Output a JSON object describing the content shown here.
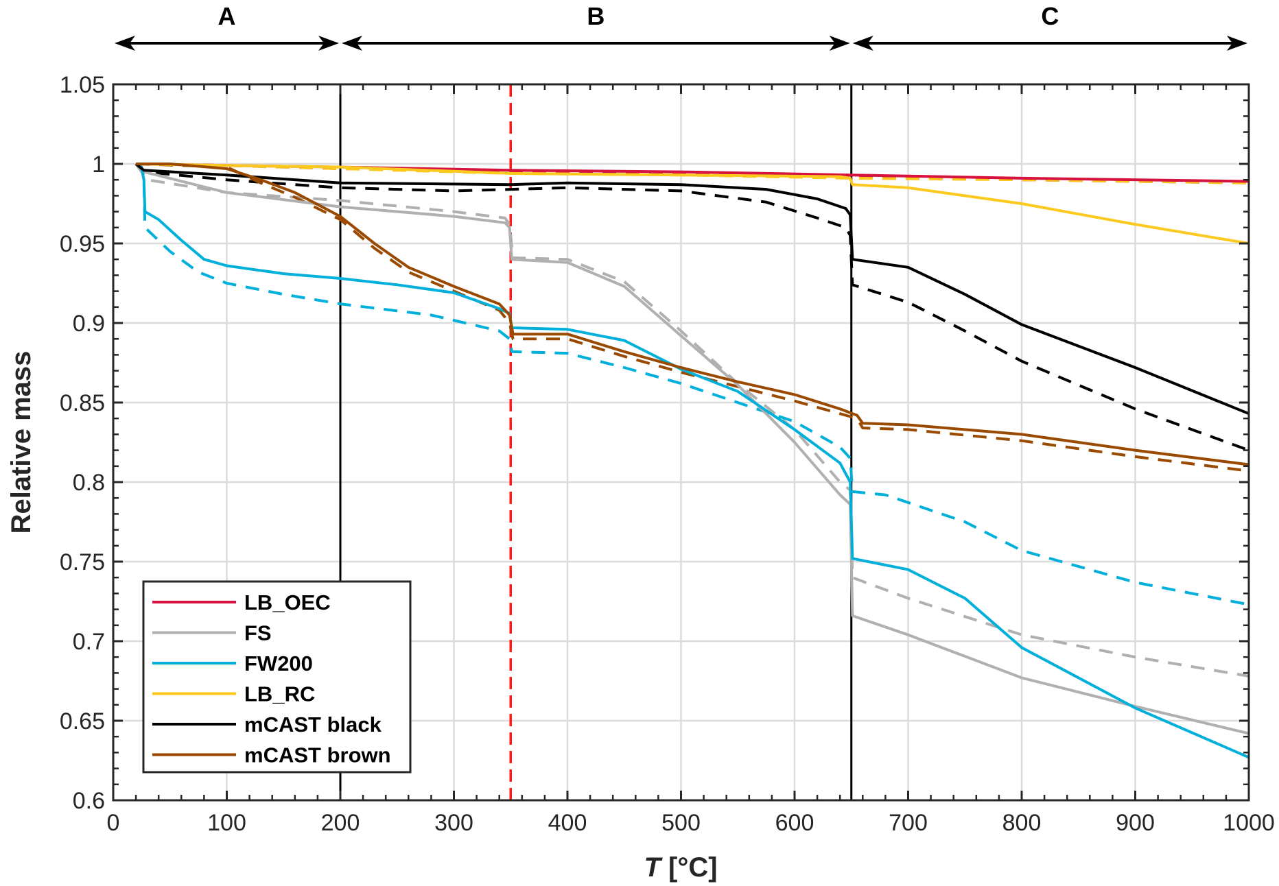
{
  "chart_data": {
    "type": "line",
    "title": "",
    "xlabel_italic": "T",
    "xlabel_rest": " [°C]",
    "ylabel": "Relative mass",
    "xlim": [
      0,
      1000
    ],
    "ylim": [
      0.6,
      1.05
    ],
    "xticks": [
      "0",
      "100",
      "200",
      "300",
      "400",
      "500",
      "600",
      "700",
      "800",
      "900",
      "1000"
    ],
    "xtick_values": [
      0,
      100,
      200,
      300,
      400,
      500,
      600,
      700,
      800,
      900,
      1000
    ],
    "yticks": [
      "0.6",
      "0.65",
      "0.7",
      "0.75",
      "0.8",
      "0.85",
      "0.9",
      "0.95",
      "1",
      "1.05"
    ],
    "ytick_values": [
      0.6,
      0.65,
      0.7,
      0.75,
      0.8,
      0.85,
      0.9,
      0.95,
      1.0,
      1.05
    ],
    "grid": true,
    "legend_position": "bottom-left",
    "regions": [
      {
        "label": "A",
        "from": 0,
        "to": 200
      },
      {
        "label": "B",
        "from": 200,
        "to": 650
      },
      {
        "label": "C",
        "from": 650,
        "to": 1000
      }
    ],
    "vlines": [
      {
        "x": 200,
        "color": "#000000",
        "style": "solid"
      },
      {
        "x": 350,
        "color": "#ff1a1a",
        "style": "dashed"
      },
      {
        "x": 650,
        "color": "#000000",
        "style": "solid"
      }
    ],
    "series": [
      {
        "name": "LB_OEC",
        "color": "#d6123f",
        "style": "dashed",
        "legend": false,
        "points": [
          [
            20,
            1.0
          ],
          [
            100,
            0.999
          ],
          [
            200,
            0.997
          ],
          [
            350,
            0.995
          ],
          [
            500,
            0.994
          ],
          [
            650,
            0.992
          ],
          [
            800,
            0.99
          ],
          [
            1000,
            0.988
          ]
        ]
      },
      {
        "name": "LB_RC",
        "color": "#fcc91e",
        "style": "dashed",
        "legend": false,
        "points": [
          [
            20,
            1.0
          ],
          [
            100,
            0.999
          ],
          [
            200,
            0.997
          ],
          [
            350,
            0.994
          ],
          [
            500,
            0.993
          ],
          [
            650,
            0.991
          ],
          [
            800,
            0.99
          ],
          [
            1000,
            0.988
          ]
        ]
      },
      {
        "name": "FS",
        "color": "#b0b0b0",
        "style": "dashed",
        "legend": false,
        "points": [
          [
            20,
            1.0
          ],
          [
            30,
            0.99
          ],
          [
            100,
            0.982
          ],
          [
            200,
            0.977
          ],
          [
            300,
            0.97
          ],
          [
            345,
            0.966
          ],
          [
            349,
            0.962
          ],
          [
            352,
            0.941
          ],
          [
            400,
            0.94
          ],
          [
            450,
            0.926
          ],
          [
            500,
            0.895
          ],
          [
            550,
            0.862
          ],
          [
            600,
            0.833
          ],
          [
            640,
            0.8
          ],
          [
            649,
            0.795
          ],
          [
            651,
            0.74
          ],
          [
            700,
            0.727
          ],
          [
            800,
            0.704
          ],
          [
            900,
            0.69
          ],
          [
            1000,
            0.678
          ]
        ]
      },
      {
        "name": "FW200",
        "color": "#00b0da",
        "style": "dashed",
        "legend": false,
        "points": [
          [
            20,
            1.0
          ],
          [
            25,
            0.998
          ],
          [
            27,
            0.99
          ],
          [
            28,
            0.96
          ],
          [
            50,
            0.945
          ],
          [
            75,
            0.932
          ],
          [
            100,
            0.925
          ],
          [
            150,
            0.918
          ],
          [
            200,
            0.912
          ],
          [
            280,
            0.905
          ],
          [
            340,
            0.895
          ],
          [
            349,
            0.89
          ],
          [
            351,
            0.882
          ],
          [
            400,
            0.881
          ],
          [
            450,
            0.872
          ],
          [
            500,
            0.862
          ],
          [
            550,
            0.85
          ],
          [
            600,
            0.838
          ],
          [
            640,
            0.822
          ],
          [
            649,
            0.815
          ],
          [
            651,
            0.794
          ],
          [
            680,
            0.792
          ],
          [
            750,
            0.775
          ],
          [
            800,
            0.757
          ],
          [
            900,
            0.737
          ],
          [
            1000,
            0.723
          ]
        ]
      },
      {
        "name": "mCAST black",
        "color": "#000000",
        "style": "dashed",
        "legend": false,
        "points": [
          [
            20,
            1.0
          ],
          [
            27,
            0.995
          ],
          [
            100,
            0.99
          ],
          [
            200,
            0.985
          ],
          [
            300,
            0.983
          ],
          [
            350,
            0.984
          ],
          [
            400,
            0.985
          ],
          [
            500,
            0.983
          ],
          [
            575,
            0.976
          ],
          [
            620,
            0.966
          ],
          [
            645,
            0.96
          ],
          [
            649,
            0.955
          ],
          [
            651,
            0.924
          ],
          [
            700,
            0.913
          ],
          [
            750,
            0.895
          ],
          [
            800,
            0.876
          ],
          [
            900,
            0.846
          ],
          [
            1000,
            0.82
          ]
        ]
      },
      {
        "name": "mCAST brown",
        "color": "#9a4a00",
        "style": "dashed",
        "legend": false,
        "points": [
          [
            20,
            1.0
          ],
          [
            100,
            0.998
          ],
          [
            130,
            0.988
          ],
          [
            160,
            0.979
          ],
          [
            200,
            0.965
          ],
          [
            230,
            0.947
          ],
          [
            260,
            0.932
          ],
          [
            300,
            0.92
          ],
          [
            340,
            0.908
          ],
          [
            349,
            0.9
          ],
          [
            352,
            0.89
          ],
          [
            400,
            0.89
          ],
          [
            450,
            0.879
          ],
          [
            500,
            0.869
          ],
          [
            550,
            0.86
          ],
          [
            600,
            0.851
          ],
          [
            640,
            0.843
          ],
          [
            655,
            0.84
          ],
          [
            660,
            0.834
          ],
          [
            700,
            0.833
          ],
          [
            800,
            0.826
          ],
          [
            900,
            0.816
          ],
          [
            1000,
            0.807
          ]
        ]
      },
      {
        "name": "LB_OEC",
        "color": "#d6123f",
        "style": "solid",
        "legend": true,
        "points": [
          [
            20,
            1.0
          ],
          [
            100,
            0.999
          ],
          [
            200,
            0.998
          ],
          [
            350,
            0.996
          ],
          [
            500,
            0.995
          ],
          [
            650,
            0.993
          ],
          [
            800,
            0.991
          ],
          [
            1000,
            0.989
          ]
        ]
      },
      {
        "name": "FS",
        "color": "#b0b0b0",
        "style": "solid",
        "legend": true,
        "points": [
          [
            20,
            1.0
          ],
          [
            27,
            0.995
          ],
          [
            100,
            0.982
          ],
          [
            200,
            0.973
          ],
          [
            300,
            0.967
          ],
          [
            345,
            0.963
          ],
          [
            349,
            0.96
          ],
          [
            351,
            0.94
          ],
          [
            400,
            0.938
          ],
          [
            450,
            0.923
          ],
          [
            500,
            0.892
          ],
          [
            550,
            0.861
          ],
          [
            600,
            0.825
          ],
          [
            640,
            0.792
          ],
          [
            649,
            0.786
          ],
          [
            651,
            0.716
          ],
          [
            700,
            0.704
          ],
          [
            800,
            0.677
          ],
          [
            900,
            0.659
          ],
          [
            1000,
            0.642
          ]
        ]
      },
      {
        "name": "FW200",
        "color": "#00b0da",
        "style": "solid",
        "legend": true,
        "points": [
          [
            20,
            1.0
          ],
          [
            25,
            0.997
          ],
          [
            27,
            0.99
          ],
          [
            28,
            0.97
          ],
          [
            40,
            0.965
          ],
          [
            60,
            0.952
          ],
          [
            80,
            0.94
          ],
          [
            100,
            0.936
          ],
          [
            150,
            0.931
          ],
          [
            200,
            0.928
          ],
          [
            250,
            0.924
          ],
          [
            300,
            0.919
          ],
          [
            340,
            0.909
          ],
          [
            349,
            0.906
          ],
          [
            351,
            0.897
          ],
          [
            400,
            0.896
          ],
          [
            450,
            0.889
          ],
          [
            500,
            0.871
          ],
          [
            550,
            0.857
          ],
          [
            600,
            0.833
          ],
          [
            640,
            0.812
          ],
          [
            649,
            0.8
          ],
          [
            651,
            0.752
          ],
          [
            700,
            0.745
          ],
          [
            750,
            0.727
          ],
          [
            800,
            0.696
          ],
          [
            900,
            0.658
          ],
          [
            1000,
            0.627
          ]
        ]
      },
      {
        "name": "LB_RC",
        "color": "#fcc91e",
        "style": "solid",
        "legend": true,
        "points": [
          [
            20,
            1.0
          ],
          [
            100,
            0.999
          ],
          [
            200,
            0.998
          ],
          [
            350,
            0.994
          ],
          [
            500,
            0.993
          ],
          [
            640,
            0.992
          ],
          [
            649,
            0.991
          ],
          [
            651,
            0.987
          ],
          [
            700,
            0.985
          ],
          [
            800,
            0.975
          ],
          [
            900,
            0.962
          ],
          [
            1000,
            0.95
          ]
        ]
      },
      {
        "name": "mCAST black",
        "color": "#000000",
        "style": "solid",
        "legend": true,
        "points": [
          [
            20,
            1.0
          ],
          [
            27,
            0.996
          ],
          [
            100,
            0.993
          ],
          [
            200,
            0.988
          ],
          [
            350,
            0.987
          ],
          [
            400,
            0.988
          ],
          [
            500,
            0.987
          ],
          [
            575,
            0.984
          ],
          [
            620,
            0.978
          ],
          [
            645,
            0.972
          ],
          [
            649,
            0.968
          ],
          [
            651,
            0.94
          ],
          [
            700,
            0.935
          ],
          [
            750,
            0.918
          ],
          [
            800,
            0.899
          ],
          [
            900,
            0.872
          ],
          [
            1000,
            0.843
          ]
        ]
      },
      {
        "name": "mCAST brown",
        "color": "#9a4a00",
        "style": "solid",
        "legend": true,
        "points": [
          [
            20,
            1.0
          ],
          [
            50,
            1.0
          ],
          [
            100,
            0.997
          ],
          [
            130,
            0.99
          ],
          [
            160,
            0.982
          ],
          [
            200,
            0.967
          ],
          [
            230,
            0.95
          ],
          [
            260,
            0.935
          ],
          [
            300,
            0.923
          ],
          [
            340,
            0.912
          ],
          [
            349,
            0.905
          ],
          [
            352,
            0.893
          ],
          [
            400,
            0.893
          ],
          [
            450,
            0.882
          ],
          [
            500,
            0.872
          ],
          [
            550,
            0.863
          ],
          [
            600,
            0.855
          ],
          [
            640,
            0.846
          ],
          [
            655,
            0.842
          ],
          [
            660,
            0.837
          ],
          [
            700,
            0.836
          ],
          [
            800,
            0.83
          ],
          [
            900,
            0.82
          ],
          [
            1000,
            0.811
          ]
        ]
      }
    ]
  }
}
